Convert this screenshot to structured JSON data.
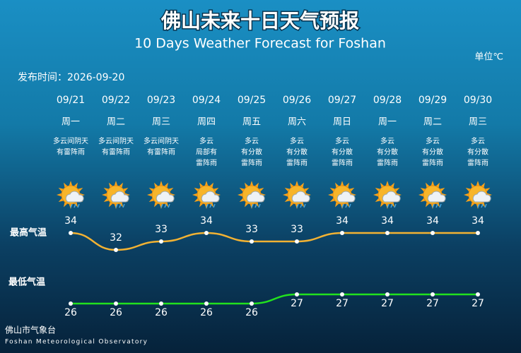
{
  "chart_data": {
    "type": "line",
    "title": "佛山未来十日天气预报",
    "subtitle": "10 Days Weather Forecast for Foshan",
    "unit": "单位℃",
    "publish_time": "发布时间：2026-09-20",
    "categories": [
      "09/21",
      "09/22",
      "09/23",
      "09/24",
      "09/25",
      "09/26",
      "09/27",
      "09/28",
      "09/29",
      "09/30"
    ],
    "weekdays": [
      "周一",
      "周二",
      "周三",
      "周四",
      "周五",
      "周六",
      "周日",
      "周一",
      "周二",
      "周三"
    ],
    "conditions": [
      [
        "多云间阴天",
        "有雷阵雨"
      ],
      [
        "多云间阴天",
        "有雷阵雨"
      ],
      [
        "多云间阴天",
        "有雷阵雨"
      ],
      [
        "多云",
        "局部有",
        "雷阵雨"
      ],
      [
        "多云",
        "有分散",
        "雷阵雨"
      ],
      [
        "多云",
        "有分散",
        "雷阵雨"
      ],
      [
        "多云",
        "有分散",
        "雷阵雨"
      ],
      [
        "多云",
        "有分散",
        "雷阵雨"
      ],
      [
        "多云",
        "有分散",
        "雷阵雨"
      ],
      [
        "多云",
        "有分散",
        "雷阵雨"
      ]
    ],
    "series": [
      {
        "name": "最高气温",
        "color": "#f2b233",
        "values": [
          34,
          32,
          33,
          34,
          33,
          33,
          34,
          34,
          34,
          34
        ]
      },
      {
        "name": "最低气温",
        "color": "#22e11e",
        "values": [
          26,
          26,
          26,
          26,
          26,
          27,
          27,
          27,
          27,
          27
        ]
      }
    ],
    "footer": "佛山市气象台",
    "footer_en": "Foshan Meteorological Observatory"
  }
}
